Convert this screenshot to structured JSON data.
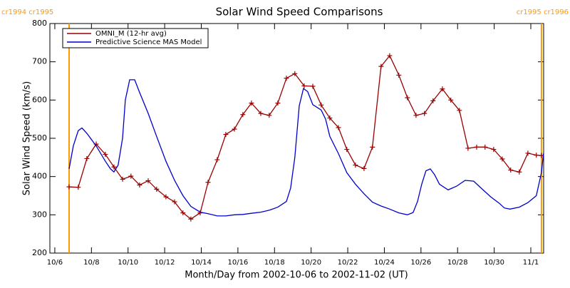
{
  "chart_data": {
    "type": "line",
    "title": "Solar Wind Speed Comparisons",
    "xlabel": "Month/Day from 2002-10-06 to 2002-11-02 (UT)",
    "ylabel": "Solar Wind Speed (km/s)",
    "xlim": [
      -0.27,
      26.7
    ],
    "ylim": [
      200,
      800
    ],
    "yticks": [
      200,
      300,
      400,
      500,
      600,
      700,
      800
    ],
    "xticks": [
      {
        "value": 0,
        "label": "10/6"
      },
      {
        "value": 2,
        "label": "10/8"
      },
      {
        "value": 4,
        "label": "10/10"
      },
      {
        "value": 6,
        "label": "10/12"
      },
      {
        "value": 8,
        "label": "10/14"
      },
      {
        "value": 10,
        "label": "10/16"
      },
      {
        "value": 12,
        "label": "10/18"
      },
      {
        "value": 14,
        "label": "10/20"
      },
      {
        "value": 16,
        "label": "10/22"
      },
      {
        "value": 18,
        "label": "10/24"
      },
      {
        "value": 20,
        "label": "10/26"
      },
      {
        "value": 22,
        "label": "10/28"
      },
      {
        "value": 24,
        "label": "10/30"
      },
      {
        "value": 26,
        "label": "11/1"
      }
    ],
    "legend": "upper left",
    "annotations": [
      {
        "x": 0.78,
        "label": "cr1994 cr1995",
        "color": "#ff9900"
      },
      {
        "x": 26.58,
        "label": "cr1995 cr1996",
        "color": "#ff9900"
      }
    ],
    "series": [
      {
        "name": "OMNI_M (12-hr avg)",
        "color": "#990000",
        "marker": "+",
        "x": [
          0.78,
          1.28,
          1.75,
          2.26,
          2.76,
          3.23,
          3.7,
          4.16,
          4.63,
          5.1,
          5.56,
          6.07,
          6.54,
          7.0,
          7.43,
          7.94,
          8.37,
          8.87,
          9.34,
          9.81,
          10.27,
          10.74,
          11.25,
          11.71,
          12.18,
          12.65,
          13.11,
          13.62,
          14.09,
          14.55,
          15.02,
          15.49,
          15.95,
          16.42,
          16.89,
          17.35,
          17.82,
          18.29,
          18.79,
          19.26,
          19.73,
          20.19,
          20.66,
          21.17,
          21.63,
          22.1,
          22.57,
          23.04,
          23.5,
          23.97,
          24.44,
          24.9,
          25.37,
          25.84,
          26.3,
          26.58
        ],
        "values": [
          373,
          372,
          447,
          485,
          458,
          425,
          393,
          401,
          378,
          389,
          367,
          347,
          334,
          305,
          289,
          305,
          385,
          444,
          510,
          524,
          562,
          592,
          565,
          560,
          592,
          657,
          669,
          637,
          636,
          587,
          553,
          528,
          471,
          430,
          421,
          477,
          688,
          716,
          665,
          606,
          560,
          565,
          598,
          629,
          600,
          573,
          474,
          477,
          477,
          471,
          446,
          417,
          412,
          461,
          456,
          455
        ]
      },
      {
        "name": "Predictive Science MAS Model",
        "color": "#0000cc",
        "x": [
          0.78,
          1.01,
          1.28,
          1.48,
          1.75,
          2.26,
          2.76,
          3.04,
          3.23,
          3.46,
          3.7,
          3.85,
          4.09,
          4.36,
          4.63,
          5.1,
          5.56,
          6.07,
          6.54,
          7.0,
          7.43,
          7.94,
          8.37,
          8.87,
          9.34,
          9.81,
          10.27,
          10.74,
          11.25,
          11.71,
          12.18,
          12.65,
          12.88,
          13.11,
          13.35,
          13.58,
          13.81,
          14.09,
          14.55,
          14.79,
          15.02,
          15.49,
          15.95,
          16.42,
          16.89,
          17.35,
          17.82,
          18.29,
          18.79,
          19.26,
          19.57,
          19.81,
          20.04,
          20.27,
          20.51,
          20.74,
          21.01,
          21.48,
          21.95,
          22.41,
          22.88,
          23.35,
          23.81,
          24.28,
          24.55,
          24.86,
          25.37,
          25.84,
          26.3,
          26.58,
          26.69
        ],
        "values": [
          420,
          480,
          520,
          527,
          513,
          480,
          440,
          420,
          412,
          430,
          500,
          600,
          653,
          653,
          620,
          565,
          505,
          440,
          390,
          350,
          322,
          307,
          303,
          297,
          297,
          300,
          301,
          304,
          307,
          312,
          320,
          335,
          370,
          450,
          585,
          630,
          622,
          588,
          574,
          550,
          505,
          460,
          410,
          380,
          355,
          333,
          323,
          315,
          305,
          300,
          306,
          335,
          380,
          415,
          420,
          405,
          380,
          365,
          375,
          390,
          388,
          367,
          347,
          330,
          318,
          315,
          320,
          332,
          350,
          410,
          460
        ]
      }
    ]
  }
}
